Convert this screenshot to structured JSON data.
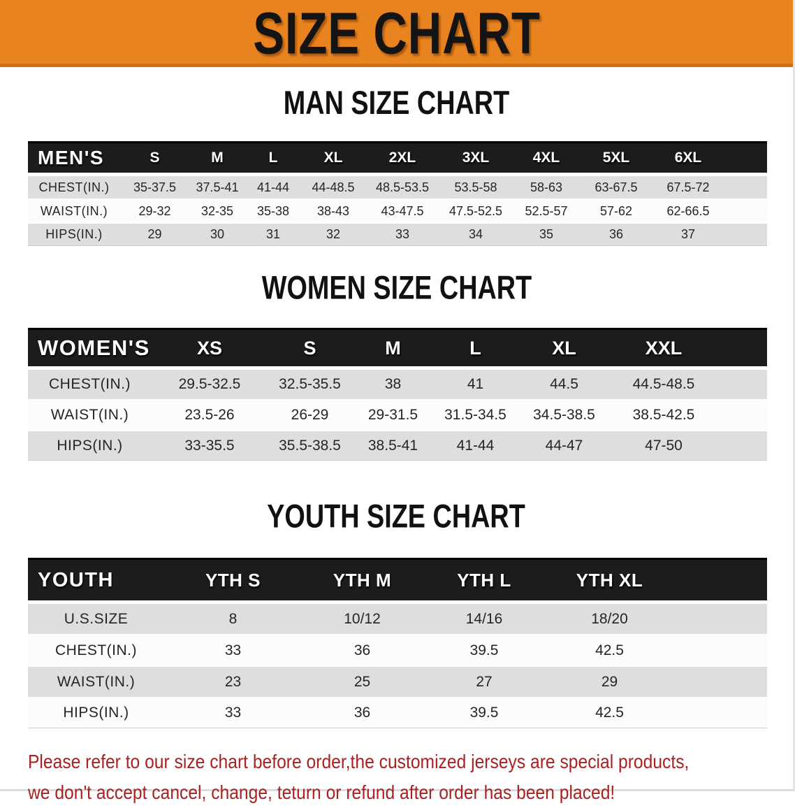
{
  "colors": {
    "banner_orange": "#E8831F",
    "banner_orange_dark": "#D06F15",
    "table_header_black": "#1C1C1C",
    "row_gray": "#DEDEDE",
    "row_white": "#FCFCFC",
    "notice_red": "#A92121"
  },
  "banner": {
    "title": "SIZE CHART"
  },
  "men": {
    "heading": "MAN SIZE CHART",
    "corner_label": "MEN'S",
    "sizes": [
      "S",
      "M",
      "L",
      "XL",
      "2XL",
      "3XL",
      "4XL",
      "5XL",
      "6XL"
    ],
    "rows": [
      {
        "label": "CHEST(IN.)",
        "values": [
          "35-37.5",
          "37.5-41",
          "41-44",
          "44-48.5",
          "48.5-53.5",
          "53.5-58",
          "58-63",
          "63-67.5",
          "67.5-72"
        ]
      },
      {
        "label": "WAIST(IN.)",
        "values": [
          "29-32",
          "32-35",
          "35-38",
          "38-43",
          "43-47.5",
          "47.5-52.5",
          "52.5-57",
          "57-62",
          "62-66.5"
        ]
      },
      {
        "label": "HIPS(IN.)",
        "values": [
          "29",
          "30",
          "31",
          "32",
          "33",
          "34",
          "35",
          "36",
          "37"
        ]
      }
    ]
  },
  "women": {
    "heading": "WOMEN SIZE CHART",
    "corner_label": "WOMEN'S",
    "sizes": [
      "XS",
      "S",
      "M",
      "L",
      "XL",
      "XXL"
    ],
    "rows": [
      {
        "label": "CHEST(IN.)",
        "values": [
          "29.5-32.5",
          "32.5-35.5",
          "38",
          "41",
          "44.5",
          "44.5-48.5"
        ]
      },
      {
        "label": "WAIST(IN.)",
        "values": [
          "23.5-26",
          "26-29",
          "29-31.5",
          "31.5-34.5",
          "34.5-38.5",
          "38.5-42.5"
        ]
      },
      {
        "label": "HIPS(IN.)",
        "values": [
          "33-35.5",
          "35.5-38.5",
          "38.5-41",
          "41-44",
          "44-47",
          "47-50"
        ]
      }
    ]
  },
  "youth": {
    "heading": "YOUTH SIZE CHART",
    "corner_label": "YOUTH",
    "sizes": [
      "YTH S",
      "YTH M",
      "YTH L",
      "YTH XL"
    ],
    "rows": [
      {
        "label": "U.S.SIZE",
        "values": [
          "8",
          "10/12",
          "14/16",
          "18/20"
        ]
      },
      {
        "label": "CHEST(IN.)",
        "values": [
          "33",
          "36",
          "39.5",
          "42.5"
        ]
      },
      {
        "label": "WAIST(IN.)",
        "values": [
          "23",
          "25",
          "27",
          "29"
        ]
      },
      {
        "label": "HIPS(IN.)",
        "values": [
          "33",
          "36",
          "39.5",
          "42.5"
        ]
      }
    ]
  },
  "notice": {
    "line1": "Please refer to our size chart before order,the customized jerseys are special products,",
    "line2": "we don't accept cancel, change, teturn or refund after order has been placed!"
  }
}
